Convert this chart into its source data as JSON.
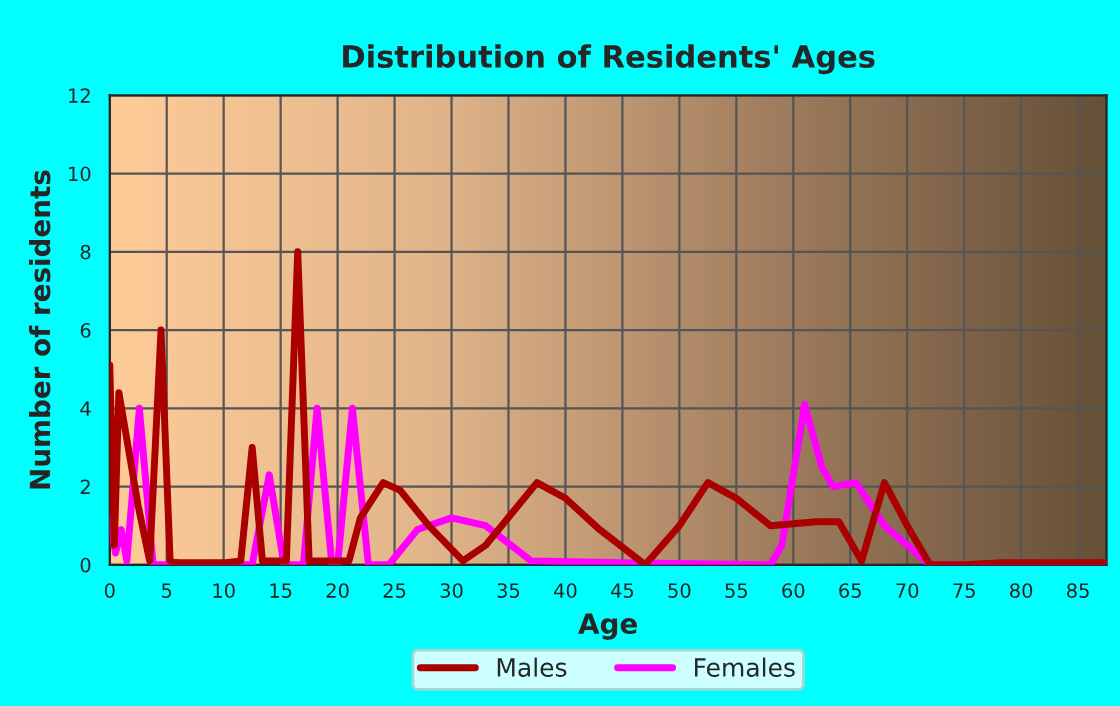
{
  "chart_data": {
    "type": "line",
    "title": "Distribution of Residents' Ages",
    "xlabel": "Age",
    "ylabel": "Number of residents",
    "xlim": [
      0,
      87.5
    ],
    "ylim": [
      0,
      12
    ],
    "xticks": [
      0,
      5,
      10,
      15,
      20,
      25,
      30,
      35,
      40,
      45,
      50,
      55,
      60,
      65,
      70,
      75,
      80,
      85
    ],
    "yticks": [
      0,
      2,
      4,
      6,
      8,
      10,
      12
    ],
    "grid": true,
    "legend": "bottom",
    "marker": "none",
    "line_style": "solid",
    "series": [
      {
        "name": "Males",
        "color": "#aa0000",
        "x": [
          0,
          0.4,
          0.8,
          2.5,
          3.5,
          4.5,
          5.3,
          6,
          10,
          11.5,
          12.5,
          13.4,
          15.5,
          16.5,
          17.5,
          19,
          21,
          22,
          24,
          25.5,
          28,
          31,
          33,
          37.5,
          40,
          43,
          47,
          50,
          52.5,
          55,
          58,
          62,
          64,
          66,
          68,
          70,
          72,
          75,
          78,
          87.5
        ],
        "values": [
          5.1,
          0.5,
          4.4,
          1.5,
          0.1,
          6,
          0.1,
          0.05,
          0.05,
          0.1,
          3,
          0.1,
          0.1,
          8,
          0.1,
          0.1,
          0.1,
          1.2,
          2.1,
          1.9,
          1,
          0.1,
          0.5,
          2.1,
          1.7,
          0.9,
          0,
          1,
          2.1,
          1.7,
          1,
          1.1,
          1.1,
          0.1,
          2.1,
          1,
          0,
          0,
          0.05,
          0.05
        ]
      },
      {
        "name": "Females",
        "color": "#ff00ff",
        "x": [
          0,
          0.5,
          1,
          1.5,
          2.6,
          3.8,
          12.5,
          14,
          15.3,
          17,
          18.2,
          19.5,
          20,
          21.3,
          22.7,
          24.5,
          27,
          30,
          33,
          37,
          45,
          58,
          59,
          61,
          62.5,
          63.5,
          65.5,
          68,
          72,
          87.5
        ],
        "values": [
          1.2,
          0.3,
          0.9,
          0.1,
          4,
          0,
          0,
          2.3,
          0,
          0,
          4,
          0,
          0,
          4,
          0,
          0,
          0.9,
          1.2,
          1,
          0.1,
          0.05,
          0,
          0.5,
          4.1,
          2.5,
          2,
          2.1,
          1,
          0,
          0
        ]
      }
    ]
  }
}
